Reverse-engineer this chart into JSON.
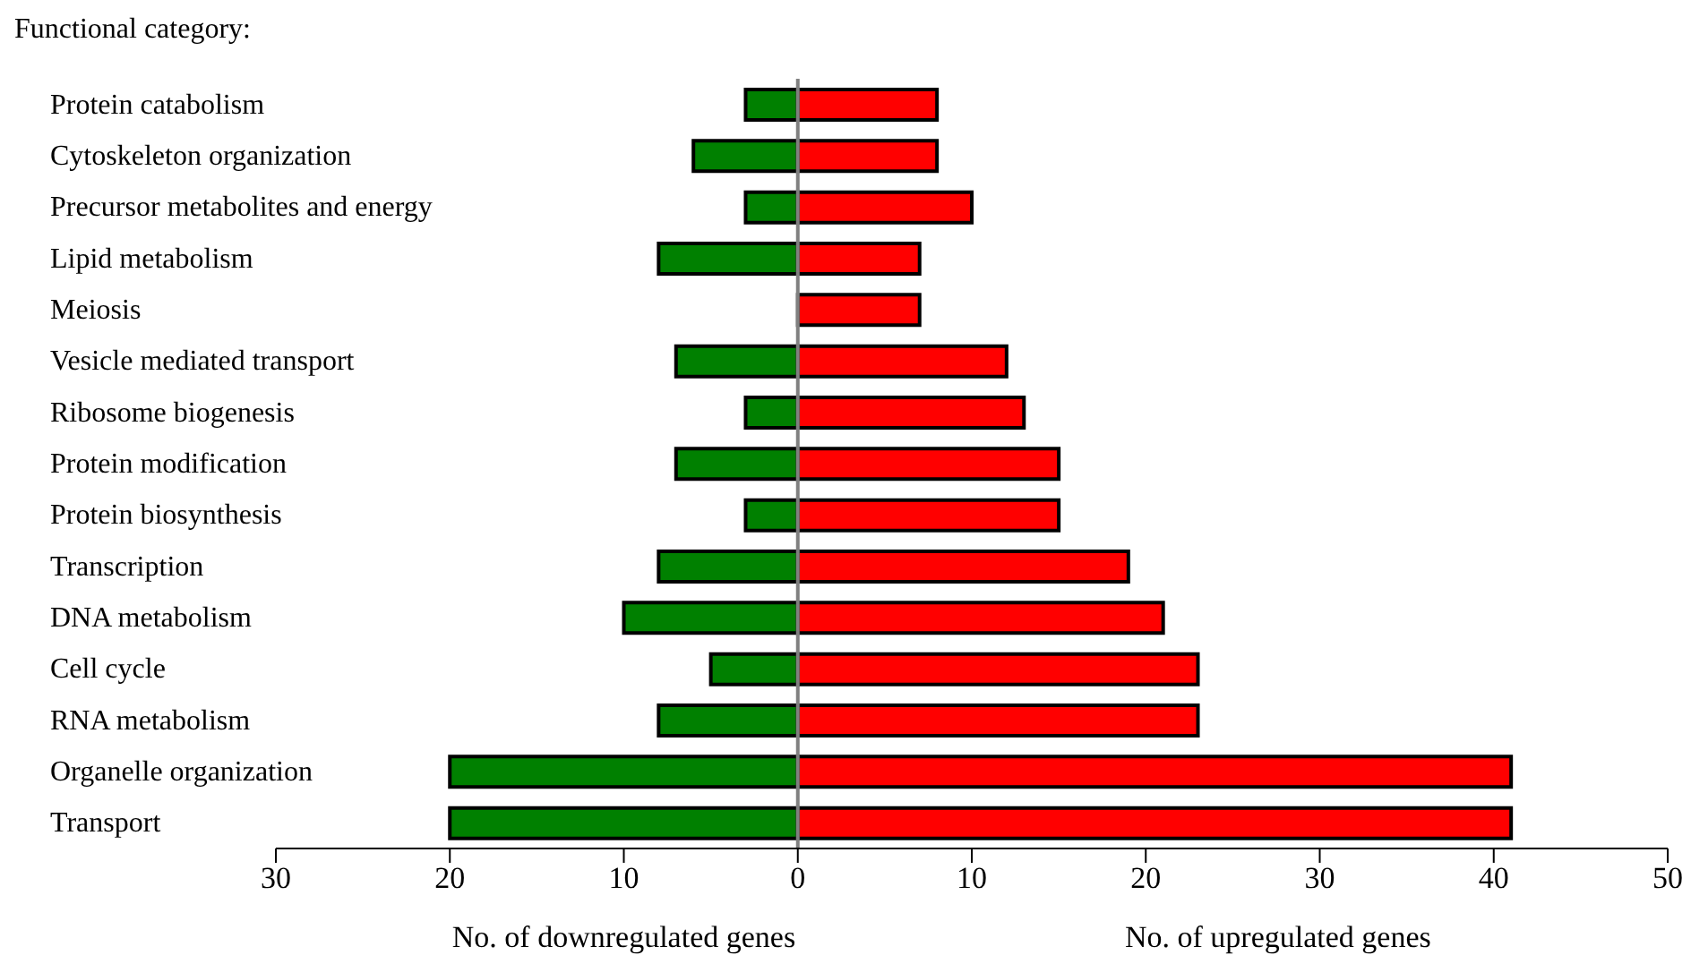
{
  "chart_data": {
    "type": "bar",
    "orientation": "horizontal",
    "stacked": true,
    "title": "Functional category:",
    "categories": [
      "Protein catabolism",
      "Cytoskeleton organization",
      "Precursor metabolites and energy",
      "Lipid metabolism",
      "Meiosis",
      "Vesicle mediated transport",
      "Ribosome biogenesis",
      "Protein modification",
      "Protein biosynthesis",
      "Transcription",
      "DNA metabolism",
      "Cell cycle",
      "RNA metabolism",
      "Organelle organization",
      "Transport"
    ],
    "series": [
      {
        "color": "#008000",
        "values": [
          -3,
          -6,
          -3,
          -8,
          0,
          -7,
          -3,
          -7,
          -3,
          -8,
          -10,
          -5,
          -8,
          -20,
          -20
        ]
      },
      {
        "color": "#ff0000",
        "values": [
          8,
          8,
          10,
          7,
          7,
          12,
          13,
          15,
          15,
          19,
          21,
          23,
          23,
          41,
          41
        ]
      }
    ],
    "xlim": [
      -30,
      50
    ],
    "xticks": [
      {
        "value": -30,
        "label": "30"
      },
      {
        "value": -20,
        "label": "20"
      },
      {
        "value": -10,
        "label": "10"
      },
      0,
      10,
      20,
      30,
      40,
      50
    ],
    "ref_lines": [
      {
        "axis": "x",
        "value": 0,
        "color": "#808080"
      }
    ],
    "annotations": [
      "No. of downregulated genes",
      "No. of upregulated genes"
    ],
    "grid": false,
    "legend": false
  }
}
